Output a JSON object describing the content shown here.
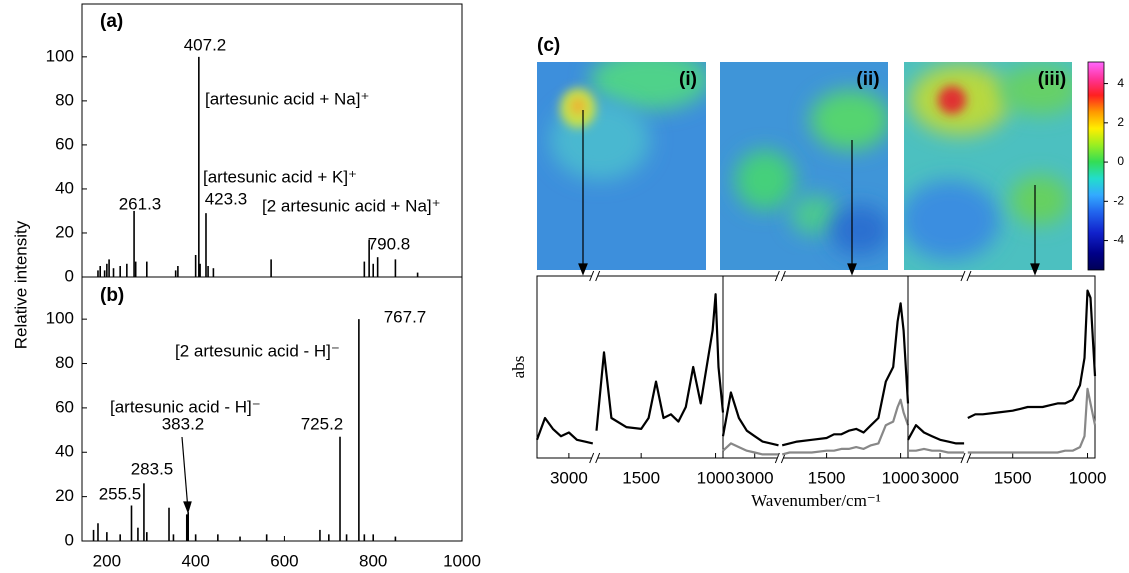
{
  "chart_data": [
    {
      "type": "stem",
      "panel_label": "(a)",
      "y_label": "Relative intensity",
      "color": "#000000",
      "x": [
        180,
        185,
        195,
        200,
        205,
        215,
        230,
        245,
        261.3,
        265,
        290,
        355,
        360,
        400,
        407.2,
        410,
        423.3,
        428,
        440,
        570,
        780,
        790.8,
        800,
        810,
        850,
        900
      ],
      "values": [
        3,
        5,
        3,
        6,
        8,
        4,
        5,
        6,
        30,
        7,
        7,
        3,
        5,
        10,
        100,
        6,
        29,
        5,
        4,
        8,
        7,
        17,
        6,
        9,
        8,
        2
      ],
      "xlim": [
        144,
        1000
      ],
      "ylim": [
        0,
        124
      ],
      "yticks": [
        0,
        20,
        40,
        60,
        80,
        100
      ],
      "annotations": [
        "[artesunic acid + Na]⁺",
        "[artesunic acid + K]⁺",
        "[2 artesunic acid + Na]⁺"
      ]
    },
    {
      "type": "stem",
      "panel_label": "(b)",
      "color": "#000000",
      "x": [
        170,
        180,
        200,
        230,
        255.5,
        270,
        283.5,
        290,
        340,
        350,
        380,
        383.2,
        400,
        450,
        500,
        560,
        680,
        700,
        725.2,
        740,
        767.7,
        780,
        800,
        850
      ],
      "values": [
        5,
        8,
        4,
        3,
        16,
        6,
        26,
        4,
        15,
        3,
        12,
        13,
        3,
        3,
        2,
        3,
        5,
        3,
        47,
        3,
        100,
        3,
        3,
        2
      ],
      "xlim": [
        144,
        1000
      ],
      "ylim": [
        0,
        119
      ],
      "yticks": [
        0,
        20,
        40,
        60,
        80,
        100
      ],
      "xticks": [
        200,
        400,
        600,
        800,
        1000
      ],
      "annotations": [
        "[2 artesunic acid - H]⁻",
        "[artesunic acid - H]⁻"
      ]
    },
    {
      "type": "heatmap",
      "panel_label": "(c)",
      "image_labels": [
        "(i)",
        "(ii)",
        "(iii)"
      ],
      "colorbar": {
        "lim": [
          -5.5,
          5.1
        ],
        "ticks": [
          4,
          2,
          0,
          -2,
          -4
        ]
      }
    },
    {
      "type": "line",
      "y_label": "abs",
      "xlim": [
        3400,
        950
      ],
      "x_break": [
        2700,
        1800
      ],
      "xticks": [
        3000,
        1500,
        1000
      ],
      "ylim": [
        0,
        1
      ],
      "x": [
        3400,
        3300,
        3200,
        3100,
        3000,
        2900,
        2800,
        2700,
        1800,
        1750,
        1700,
        1600,
        1500,
        1450,
        1400,
        1350,
        1300,
        1250,
        1200,
        1150,
        1100,
        1050,
        1020,
        1000,
        980,
        950
      ],
      "series": [
        {
          "color": "#000000",
          "values": [
            0.1,
            0.22,
            0.16,
            0.12,
            0.14,
            0.1,
            0.09,
            0.08,
            0.15,
            0.58,
            0.22,
            0.17,
            0.16,
            0.22,
            0.42,
            0.22,
            0.24,
            0.2,
            0.28,
            0.5,
            0.3,
            0.55,
            0.7,
            0.9,
            0.5,
            0.25
          ]
        }
      ]
    },
    {
      "type": "line",
      "x_label": "Wavenumber/cm⁻¹",
      "xlim": [
        3400,
        950
      ],
      "x_break": [
        2700,
        1800
      ],
      "xticks": [
        3000,
        1500,
        1000
      ],
      "ylim": [
        0,
        1
      ],
      "x": [
        3400,
        3300,
        3200,
        3100,
        3000,
        2900,
        2800,
        2700,
        1800,
        1750,
        1700,
        1600,
        1500,
        1450,
        1400,
        1350,
        1300,
        1250,
        1200,
        1150,
        1100,
        1050,
        1020,
        1000,
        980,
        950
      ],
      "series": [
        {
          "color": "#000000",
          "values": [
            0.12,
            0.36,
            0.22,
            0.15,
            0.12,
            0.09,
            0.08,
            0.07,
            0.07,
            0.08,
            0.09,
            0.1,
            0.11,
            0.13,
            0.13,
            0.15,
            0.16,
            0.14,
            0.18,
            0.22,
            0.42,
            0.5,
            0.75,
            0.85,
            0.7,
            0.3
          ]
        },
        {
          "color": "#888888",
          "values": [
            0.04,
            0.08,
            0.06,
            0.04,
            0.03,
            0.02,
            0.02,
            0.02,
            0.02,
            0.03,
            0.03,
            0.03,
            0.04,
            0.04,
            0.05,
            0.05,
            0.06,
            0.05,
            0.07,
            0.08,
            0.18,
            0.2,
            0.28,
            0.32,
            0.25,
            0.18
          ]
        }
      ]
    },
    {
      "type": "line",
      "xlim": [
        3400,
        950
      ],
      "x_break": [
        2700,
        1800
      ],
      "xticks": [
        3000,
        1500,
        1000
      ],
      "ylim": [
        0,
        1
      ],
      "x": [
        3400,
        3300,
        3200,
        3100,
        3000,
        2900,
        2800,
        2700,
        1800,
        1750,
        1700,
        1600,
        1500,
        1450,
        1400,
        1350,
        1300,
        1250,
        1200,
        1150,
        1100,
        1050,
        1020,
        1000,
        980,
        950
      ],
      "series": [
        {
          "color": "#000000",
          "values": [
            0.1,
            0.18,
            0.14,
            0.12,
            0.1,
            0.09,
            0.08,
            0.08,
            0.22,
            0.24,
            0.24,
            0.25,
            0.26,
            0.27,
            0.28,
            0.28,
            0.28,
            0.29,
            0.3,
            0.3,
            0.32,
            0.4,
            0.55,
            0.92,
            0.88,
            0.45
          ]
        },
        {
          "color": "#888888",
          "values": [
            0.04,
            0.04,
            0.05,
            0.04,
            0.04,
            0.03,
            0.03,
            0.03,
            0.03,
            0.03,
            0.03,
            0.03,
            0.03,
            0.03,
            0.03,
            0.03,
            0.03,
            0.03,
            0.03,
            0.04,
            0.04,
            0.06,
            0.12,
            0.38,
            0.3,
            0.18
          ]
        }
      ]
    }
  ]
}
